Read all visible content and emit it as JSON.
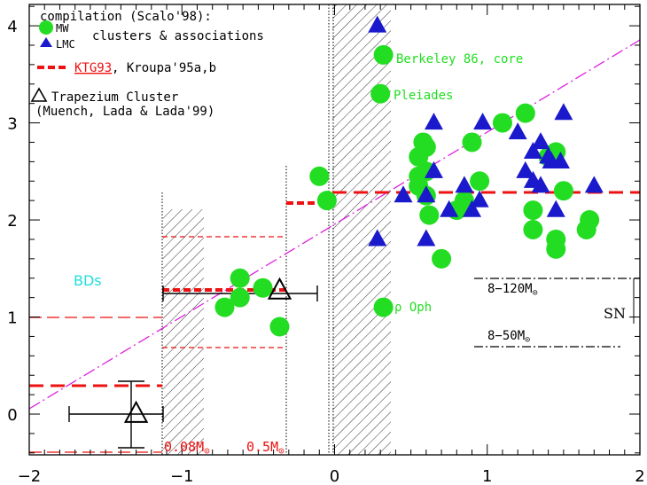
{
  "chart_data": {
    "type": "scatter",
    "xlim": [
      -2,
      2
    ],
    "ylim": [
      -0.42,
      4.22
    ],
    "x_ticks": [
      "−2",
      "−1",
      "0",
      "1",
      "2"
    ],
    "y_ticks": [
      "0",
      "1",
      "2",
      "3",
      "4"
    ],
    "legend": {
      "title": "compilation (Scalo'98):",
      "mw_label": "MW",
      "lmc_label": "LMC",
      "clusters_label": "clusters & associations",
      "ktg_label": "KTG93",
      "kroupa_label": ", Kroupa'95a,b",
      "trap_label_1": "Trapezium Cluster",
      "trap_label_2": "(Muench, Lada & Lada'99)"
    },
    "annotations": {
      "berkeley": "Berkeley 86, core",
      "pleiades": "Pleiades",
      "rho_oph": "ρ Oph",
      "bds": "BDs",
      "sn": "SN",
      "range_a_text": "8−120M",
      "range_b_text": "8−50M",
      "mass_a_text": "0.08M",
      "mass_b_text": "0.5M",
      "sun_symbol": "⊙"
    },
    "series": [
      {
        "name": "MW",
        "marker": "circle",
        "color": "#22dd22",
        "points": [
          [
            0.32,
            3.7
          ],
          [
            0.3,
            3.3
          ],
          [
            -0.1,
            2.45
          ],
          [
            -0.05,
            2.2
          ],
          [
            0.55,
            2.65
          ],
          [
            0.58,
            2.8
          ],
          [
            0.6,
            2.75
          ],
          [
            0.6,
            2.5
          ],
          [
            0.55,
            2.45
          ],
          [
            0.55,
            2.35
          ],
          [
            0.6,
            2.25
          ],
          [
            0.62,
            2.05
          ],
          [
            0.8,
            2.1
          ],
          [
            0.85,
            2.2
          ],
          [
            0.9,
            2.8
          ],
          [
            0.95,
            2.4
          ],
          [
            0.7,
            1.6
          ],
          [
            1.1,
            3.0
          ],
          [
            1.25,
            3.1
          ],
          [
            1.4,
            2.65
          ],
          [
            1.45,
            2.7
          ],
          [
            1.5,
            2.3
          ],
          [
            1.3,
            2.1
          ],
          [
            1.3,
            1.9
          ],
          [
            1.45,
            1.8
          ],
          [
            1.45,
            1.7
          ],
          [
            1.65,
            1.9
          ],
          [
            1.67,
            2.0
          ],
          [
            0.32,
            1.1
          ],
          [
            -0.62,
            1.4
          ],
          [
            -0.62,
            1.2
          ],
          [
            -0.72,
            1.1
          ],
          [
            -0.47,
            1.3
          ],
          [
            -0.36,
            0.9
          ]
        ]
      },
      {
        "name": "LMC",
        "marker": "triangle",
        "color": "#1a1acc",
        "points": [
          [
            0.28,
            4.0
          ],
          [
            0.65,
            3.0
          ],
          [
            0.97,
            3.0
          ],
          [
            1.2,
            2.9
          ],
          [
            1.5,
            3.1
          ],
          [
            1.3,
            2.7
          ],
          [
            1.35,
            2.8
          ],
          [
            1.4,
            2.65
          ],
          [
            1.42,
            2.6
          ],
          [
            1.48,
            2.6
          ],
          [
            0.65,
            2.5
          ],
          [
            0.85,
            2.35
          ],
          [
            1.25,
            2.5
          ],
          [
            1.3,
            2.4
          ],
          [
            1.35,
            2.35
          ],
          [
            0.45,
            2.25
          ],
          [
            0.6,
            2.25
          ],
          [
            0.75,
            2.1
          ],
          [
            0.9,
            2.1
          ],
          [
            0.95,
            2.2
          ],
          [
            1.45,
            2.1
          ],
          [
            1.7,
            2.35
          ],
          [
            0.28,
            1.8
          ],
          [
            0.6,
            1.8
          ]
        ]
      },
      {
        "name": "Trapezium Cluster",
        "marker": "open-triangle",
        "color": "#000000",
        "points": [
          [
            -1.3,
            0.0
          ],
          [
            -0.36,
            1.27
          ]
        ]
      }
    ]
  }
}
